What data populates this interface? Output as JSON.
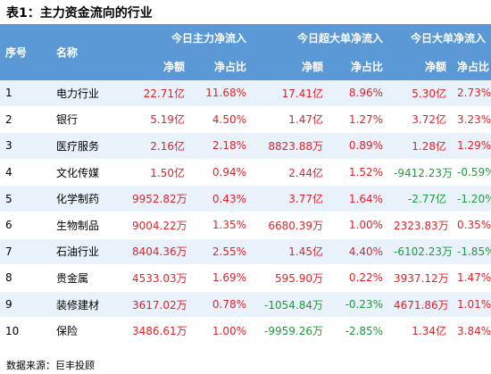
{
  "title": "表1：主力资金流向的行业",
  "headers": {
    "index": "序号",
    "name": "名称",
    "groups": [
      "今日主力净流入",
      "今日超大单净流入",
      "今日大单净流入"
    ],
    "sub": [
      "净额",
      "净占比",
      "净额",
      "净占比",
      "净额",
      "净占比"
    ]
  },
  "rows": [
    {
      "idx": "1",
      "name": "电力行业",
      "c": [
        "22.71亿",
        "11.68%",
        "17.41亿",
        "8.96%",
        "5.30亿",
        "2.73%"
      ]
    },
    {
      "idx": "2",
      "name": "银行",
      "c": [
        "5.19亿",
        "4.50%",
        "1.47亿",
        "1.27%",
        "3.72亿",
        "3.23%"
      ]
    },
    {
      "idx": "3",
      "name": "医疗服务",
      "c": [
        "2.16亿",
        "2.18%",
        "8823.88万",
        "0.89%",
        "1.28亿",
        "1.29%"
      ]
    },
    {
      "idx": "4",
      "name": "文化传媒",
      "c": [
        "1.50亿",
        "0.94%",
        "2.44亿",
        "1.52%",
        "-9412.23万",
        "-0.59%"
      ]
    },
    {
      "idx": "5",
      "name": "化学制药",
      "c": [
        "9952.82万",
        "0.43%",
        "3.77亿",
        "1.64%",
        "-2.77亿",
        "-1.20%"
      ]
    },
    {
      "idx": "6",
      "name": "生物制品",
      "c": [
        "9004.22万",
        "1.35%",
        "6680.39万",
        "1.00%",
        "2323.83万",
        "0.35%"
      ]
    },
    {
      "idx": "7",
      "name": "石油行业",
      "c": [
        "8404.36万",
        "2.55%",
        "1.45亿",
        "4.40%",
        "-6102.23万",
        "-1.85%"
      ]
    },
    {
      "idx": "8",
      "name": "贵金属",
      "c": [
        "4533.03万",
        "1.69%",
        "595.90万",
        "0.22%",
        "3937.12万",
        "1.47%"
      ]
    },
    {
      "idx": "9",
      "name": "装修建材",
      "c": [
        "3617.02万",
        "0.78%",
        "-1054.84万",
        "-0.23%",
        "4671.86万",
        "1.01%"
      ]
    },
    {
      "idx": "10",
      "name": "保险",
      "c": [
        "3486.61万",
        "1.00%",
        "-9959.26万",
        "-2.85%",
        "1.34亿",
        "3.84%"
      ]
    }
  ],
  "source": "数据来源：巨丰投顾",
  "colors": {
    "header_bg": "#5b98d6",
    "stripe": "#e9f1fa",
    "positive": "#e0232b",
    "negative": "#1e9a3c"
  }
}
